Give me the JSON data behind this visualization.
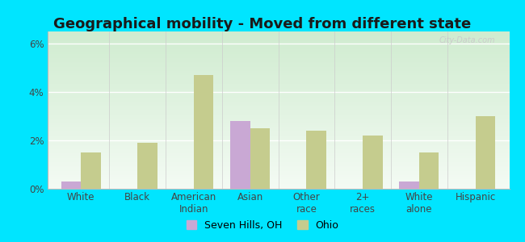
{
  "title": "Geographical mobility - Moved from different state",
  "categories": [
    "White",
    "Black",
    "American\nIndian",
    "Asian",
    "Other\nrace",
    "2+\nraces",
    "White\nalone",
    "Hispanic"
  ],
  "seven_hills": [
    0.3,
    0.0,
    0.0,
    2.8,
    0.0,
    0.0,
    0.3,
    0.0
  ],
  "ohio": [
    1.5,
    1.9,
    4.7,
    2.5,
    2.4,
    2.2,
    1.5,
    3.0
  ],
  "seven_hills_color": "#c9a8d4",
  "ohio_color": "#c5cc8e",
  "background_color_outer": "#00e5ff",
  "grad_top": "#d0ecd0",
  "grad_bottom": "#f4fbf4",
  "ylim": [
    0,
    6.5
  ],
  "yticks": [
    0,
    2,
    4,
    6
  ],
  "ytick_labels": [
    "0%",
    "2%",
    "4%",
    "6%"
  ],
  "bar_width": 0.35,
  "legend_seven_hills": "Seven Hills, OH",
  "legend_ohio": "Ohio",
  "title_fontsize": 13,
  "label_fontsize": 8.5,
  "watermark": "City-Data.com"
}
